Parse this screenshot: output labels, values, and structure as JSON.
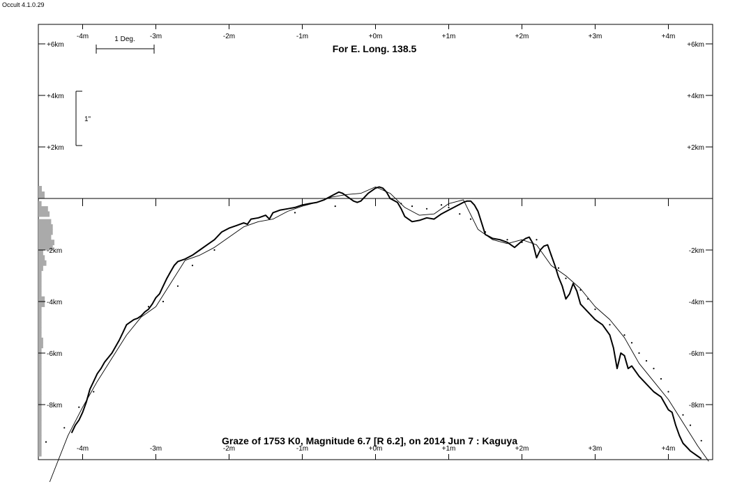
{
  "window": {
    "app_version": "Occult 4.1.0.29"
  },
  "chart_data": {
    "type": "line",
    "title": "For E. Long. 138.5",
    "caption": "Graze of  1753 K0,  Magnitude 6.7 [R 6.2],  on 2014 Jun  7  :  Kaguya",
    "xlabel": "",
    "ylabel": "",
    "xlim": [
      -4.6,
      4.6
    ],
    "ylim": [
      -10.2,
      7.0
    ],
    "x_ticks": [
      -4,
      -3,
      -2,
      -1,
      0,
      1,
      2,
      3,
      4
    ],
    "x_tick_labels": [
      "-4m",
      "-3m",
      "-2m",
      "-1m",
      "+0m",
      "+1m",
      "+2m",
      "+3m",
      "+4m"
    ],
    "y_ticks_top": [
      6,
      4,
      2
    ],
    "y_tick_labels_top": [
      "+6km",
      "+4km",
      "+2km"
    ],
    "y_ticks_bottom": [
      -2,
      -4,
      -6,
      -8
    ],
    "y_tick_labels_bottom": [
      "-2km",
      "-4km",
      "-6km",
      "-8km"
    ],
    "scale_bars": {
      "horizontal_label": "1 Deg.",
      "vertical_label": "1\""
    },
    "grid": false,
    "series": [
      {
        "style": "thick-line",
        "x": [
          -4.15,
          -4.1,
          -4.05,
          -4.0,
          -3.95,
          -3.9,
          -3.85,
          -3.8,
          -3.75,
          -3.7,
          -3.6,
          -3.5,
          -3.45,
          -3.4,
          -3.35,
          -3.3,
          -3.25,
          -3.2,
          -3.15,
          -3.1,
          -3.05,
          -3.0,
          -2.95,
          -2.9,
          -2.85,
          -2.8,
          -2.75,
          -2.7,
          -2.6,
          -2.5,
          -2.4,
          -2.3,
          -2.2,
          -2.1,
          -2.0,
          -1.9,
          -1.8,
          -1.75,
          -1.7,
          -1.6,
          -1.5,
          -1.45,
          -1.4,
          -1.3,
          -1.2,
          -1.1,
          -1.0,
          -0.9,
          -0.8,
          -0.7,
          -0.6,
          -0.5,
          -0.45,
          -0.4,
          -0.3,
          -0.25,
          -0.2,
          -0.1,
          0.0,
          0.05,
          0.1,
          0.15,
          0.2,
          0.3,
          0.35,
          0.4,
          0.5,
          0.6,
          0.7,
          0.8,
          0.9,
          1.0,
          1.1,
          1.2,
          1.25,
          1.3,
          1.35,
          1.4,
          1.5,
          1.6,
          1.7,
          1.8,
          1.9,
          2.0,
          2.05,
          2.1,
          2.15,
          2.2,
          2.25,
          2.3,
          2.35,
          2.4,
          2.45,
          2.5,
          2.55,
          2.6,
          2.65,
          2.7,
          2.75,
          2.8,
          2.9,
          3.0,
          3.1,
          3.2,
          3.25,
          3.3,
          3.35,
          3.4,
          3.45,
          3.5,
          3.6,
          3.7,
          3.8,
          3.9,
          4.0,
          4.05,
          4.1,
          4.15,
          4.2,
          4.25,
          4.3,
          4.35,
          4.4,
          4.45
        ],
        "y": [
          -9.1,
          -8.8,
          -8.6,
          -8.3,
          -7.9,
          -7.4,
          -7.1,
          -6.8,
          -6.6,
          -6.35,
          -6.0,
          -5.5,
          -5.2,
          -4.9,
          -4.8,
          -4.7,
          -4.65,
          -4.55,
          -4.4,
          -4.3,
          -4.1,
          -3.85,
          -3.7,
          -3.4,
          -3.1,
          -2.85,
          -2.6,
          -2.45,
          -2.35,
          -2.2,
          -2.0,
          -1.8,
          -1.6,
          -1.3,
          -1.15,
          -1.05,
          -0.95,
          -1.0,
          -0.8,
          -0.75,
          -0.65,
          -0.8,
          -0.55,
          -0.45,
          -0.4,
          -0.35,
          -0.25,
          -0.2,
          -0.15,
          -0.05,
          0.1,
          0.25,
          0.2,
          0.1,
          -0.1,
          -0.15,
          -0.1,
          0.2,
          0.4,
          0.45,
          0.4,
          0.25,
          0.0,
          -0.15,
          -0.4,
          -0.7,
          -0.9,
          -0.85,
          -0.75,
          -0.8,
          -0.6,
          -0.45,
          -0.3,
          -0.15,
          -0.1,
          -0.1,
          -0.25,
          -0.5,
          -1.4,
          -1.55,
          -1.6,
          -1.7,
          -1.9,
          -1.65,
          -1.55,
          -1.5,
          -1.75,
          -2.3,
          -2.0,
          -1.85,
          -1.8,
          -2.2,
          -2.6,
          -3.05,
          -3.4,
          -3.9,
          -3.7,
          -3.3,
          -3.6,
          -4.1,
          -4.4,
          -4.7,
          -4.9,
          -5.3,
          -5.8,
          -6.6,
          -6.0,
          -6.1,
          -6.6,
          -6.5,
          -6.9,
          -7.2,
          -7.5,
          -7.7,
          -8.2,
          -8.3,
          -8.8,
          -9.2,
          -9.5,
          -9.65,
          -9.8,
          -9.9,
          -10.0,
          -10.1
        ]
      },
      {
        "style": "thin-line",
        "x": [
          -4.45,
          -4.2,
          -4.0,
          -3.8,
          -3.6,
          -3.4,
          -3.2,
          -3.0,
          -2.8,
          -2.6,
          -2.4,
          -2.2,
          -2.0,
          -1.8,
          -1.6,
          -1.4,
          -1.2,
          -1.0,
          -0.8,
          -0.6,
          -0.4,
          -0.2,
          0.0,
          0.2,
          0.4,
          0.6,
          0.8,
          1.0,
          1.2,
          1.4,
          1.6,
          1.8,
          2.0,
          2.2,
          2.4,
          2.6,
          2.8,
          3.0,
          3.2,
          3.4,
          3.6,
          3.8,
          4.0,
          4.2,
          4.4,
          4.55
        ],
        "y": [
          -11.0,
          -9.2,
          -8.1,
          -7.1,
          -6.2,
          -5.3,
          -4.6,
          -4.2,
          -3.3,
          -2.4,
          -2.2,
          -1.9,
          -1.5,
          -1.1,
          -0.9,
          -0.8,
          -0.5,
          -0.3,
          -0.15,
          0.05,
          0.15,
          0.2,
          0.45,
          0.2,
          -0.35,
          -0.65,
          -0.6,
          -0.2,
          -0.05,
          -1.2,
          -1.6,
          -1.75,
          -1.6,
          -1.8,
          -2.6,
          -3.0,
          -3.5,
          -4.2,
          -4.7,
          -5.4,
          -6.4,
          -7.1,
          -7.8,
          -8.7,
          -9.6,
          -10.2
        ]
      },
      {
        "style": "dots",
        "x": [
          -4.5,
          -4.25,
          -4.05,
          -3.85,
          -3.1,
          -2.9,
          -2.7,
          -2.5,
          -2.2,
          -1.1,
          -0.55,
          -0.25,
          0.2,
          0.35,
          0.5,
          0.7,
          0.9,
          1.0,
          1.15,
          1.3,
          1.5,
          1.8,
          2.0,
          2.2,
          2.4,
          2.5,
          2.6,
          2.8,
          2.9,
          3.0,
          3.2,
          3.4,
          3.5,
          3.6,
          3.7,
          3.8,
          3.9,
          4.0,
          4.2,
          4.3,
          4.45
        ],
        "y": [
          -9.45,
          -8.9,
          -8.1,
          -7.5,
          -4.2,
          -4.0,
          -3.4,
          -2.6,
          -2.0,
          -0.55,
          -0.3,
          -0.15,
          0.0,
          -0.2,
          -0.3,
          -0.4,
          -0.25,
          -0.35,
          -0.6,
          -0.8,
          -1.3,
          -1.6,
          -1.7,
          -1.6,
          -2.2,
          -2.7,
          -3.1,
          -3.55,
          -3.9,
          -4.3,
          -4.9,
          -5.3,
          -5.6,
          -6.0,
          -6.3,
          -6.6,
          -7.0,
          -7.5,
          -8.4,
          -8.8,
          -9.4
        ]
      }
    ],
    "limb_profile": {
      "x": [
        -4.6,
        -4.55,
        -4.5,
        -4.45,
        -4.4,
        -4.35,
        -4.3,
        -4.25,
        -4.2,
        -4.15,
        -4.1,
        -4.05,
        -4.0,
        -3.95,
        -3.9,
        -3.85,
        -3.8,
        -3.75,
        -3.7,
        -3.65,
        -3.6,
        -3.55,
        -3.5,
        -3.45,
        -3.4,
        -3.35,
        -3.3,
        -3.25,
        -3.2,
        -3.15,
        -3.1,
        -3.05,
        -3.0,
        -2.95,
        -2.9,
        -2.85,
        -2.8,
        -2.75,
        -2.7,
        -2.65,
        -2.6,
        -2.55,
        -2.5,
        -2.45,
        -2.4,
        -2.35,
        -2.3,
        -2.25,
        -2.2,
        -2.15,
        -2.1,
        -2.05,
        -2.0
      ],
      "values": [
        0.0,
        0.0,
        0.0,
        0.0,
        0.0,
        0.0,
        0.0,
        0.0,
        0.0,
        0.0,
        0.0,
        0.0,
        0.0,
        0.0,
        0.0,
        0.0,
        0.0,
        0.0,
        0.0,
        0.0,
        0.0,
        0.0,
        0.0,
        0.0,
        0.0,
        0.0,
        0.0,
        0.0,
        0.0,
        0.0,
        0.0,
        0.0,
        0.0,
        0.0,
        0.0,
        0.0,
        0.0,
        0.0,
        0.0,
        0.0,
        0.0,
        0.0,
        0.0,
        0.0,
        0.0,
        0.0,
        0.0,
        0.0,
        0.0,
        0.0,
        0.0,
        0.0,
        0.0
      ],
      "histogram_km": [
        0.2,
        0.4,
        0.6,
        0.9,
        1.1,
        1.3,
        1.5,
        1.7,
        1.9,
        2.1,
        2.3,
        2.5,
        2.7,
        2.9,
        3.1,
        3.3,
        3.5,
        3.7,
        3.9,
        4.1,
        4.3,
        4.5,
        4.7,
        4.9,
        5.1,
        5.3,
        5.5,
        5.7,
        5.9,
        6.1,
        6.3,
        6.5,
        6.7,
        6.9,
        7.1,
        7.3,
        7.5,
        7.7,
        7.9,
        8.1,
        8.3,
        8.5,
        8.7,
        8.9,
        9.1,
        9.3,
        9.5,
        9.7,
        9.9
      ],
      "histogram_counts": [
        2,
        6,
        7,
        8,
        9,
        9,
        8,
        10,
        9,
        3,
        4,
        5,
        3,
        2,
        2,
        2,
        2,
        2,
        4,
        4,
        2,
        2,
        2,
        2,
        2,
        2,
        3,
        3,
        2,
        2,
        2,
        2,
        2,
        2,
        2,
        2,
        2,
        2,
        2,
        2,
        2,
        2,
        2,
        2,
        2,
        2,
        2,
        2,
        2
      ]
    }
  }
}
